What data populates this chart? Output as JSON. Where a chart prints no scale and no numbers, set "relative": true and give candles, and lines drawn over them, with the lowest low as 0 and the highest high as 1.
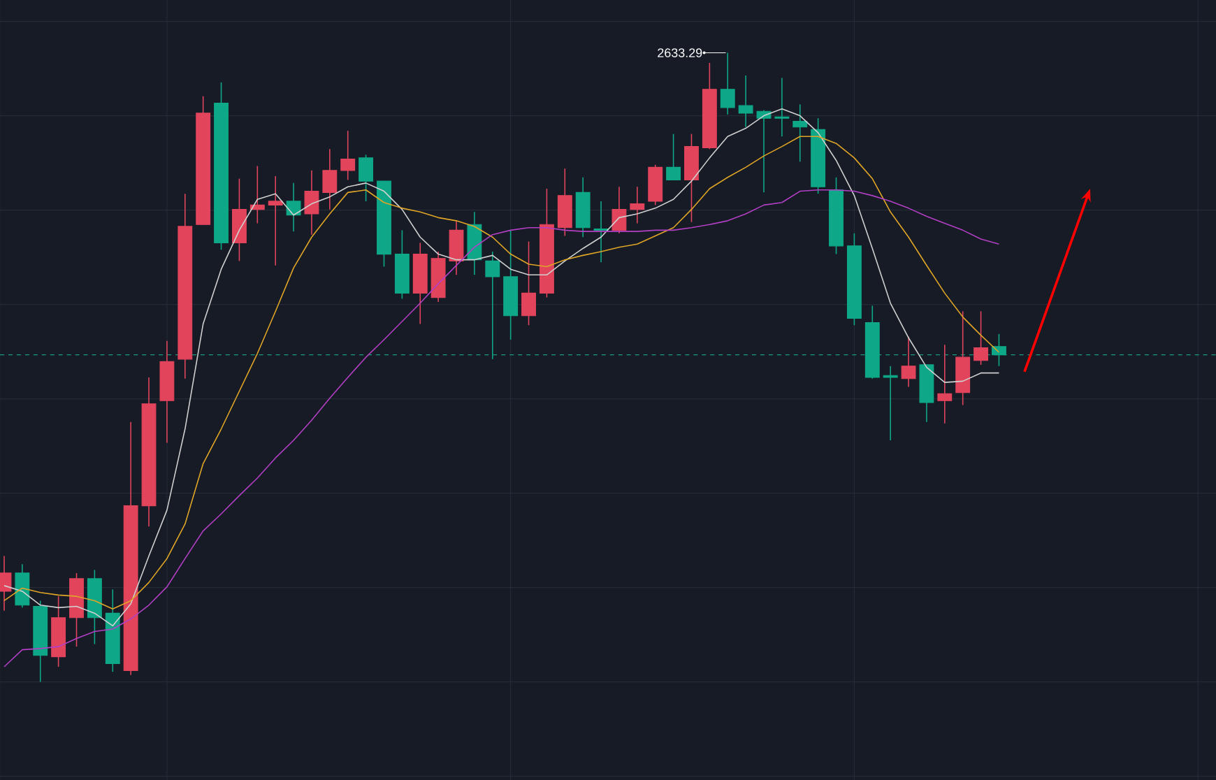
{
  "chart_data": {
    "type": "candlestick",
    "relative": true,
    "grid": true,
    "categories": [
      null,
      null,
      null,
      null,
      null,
      null,
      null,
      null,
      null,
      null,
      null,
      null,
      null,
      null,
      null,
      null,
      null,
      null,
      null,
      null,
      null,
      null,
      null,
      null,
      null,
      null,
      null,
      null,
      null,
      null,
      null,
      null,
      null,
      null,
      null,
      null,
      null,
      null,
      null,
      null,
      null,
      null,
      null,
      null,
      null,
      null,
      null,
      null,
      null,
      null,
      null,
      null,
      null,
      null,
      null,
      null
    ],
    "ohlc": [
      [
        0.144,
        0.2,
        0.113,
        0.173
      ],
      [
        0.173,
        0.187,
        0.118,
        0.122
      ],
      [
        0.12,
        0.129,
        0,
        0.042
      ],
      [
        0.04,
        0.136,
        0.024,
        0.102
      ],
      [
        0.102,
        0.173,
        0.056,
        0.164
      ],
      [
        0.164,
        0.178,
        0.06,
        0.102
      ],
      [
        0.109,
        0.147,
        0.016,
        0.029
      ],
      [
        0.018,
        0.413,
        0.011,
        0.28
      ],
      [
        0.28,
        0.484,
        0.247,
        0.442
      ],
      [
        0.447,
        0.542,
        0.38,
        0.509
      ],
      [
        0.513,
        0.776,
        0.482,
        0.724
      ],
      [
        0.727,
        0.931,
        0.727,
        0.904
      ],
      [
        0.92,
        0.953,
        0.687,
        0.698
      ],
      [
        0.698,
        0.8,
        0.669,
        0.751
      ],
      [
        0.751,
        0.82,
        0.729,
        0.758
      ],
      [
        0.758,
        0.804,
        0.662,
        0.764
      ],
      [
        0.764,
        0.793,
        0.716,
        0.742
      ],
      [
        0.744,
        0.813,
        0.711,
        0.78
      ],
      [
        0.778,
        0.847,
        0.751,
        0.813
      ],
      [
        0.813,
        0.876,
        0.798,
        0.831
      ],
      [
        0.833,
        0.838,
        0.764,
        0.796
      ],
      [
        0.796,
        0.796,
        0.66,
        0.68
      ],
      [
        0.68,
        0.718,
        0.609,
        0.618
      ],
      [
        0.618,
        0.698,
        0.569,
        0.68
      ],
      [
        0.611,
        0.684,
        0.604,
        0.673
      ],
      [
        0.669,
        0.733,
        0.647,
        0.718
      ],
      [
        0.727,
        0.747,
        0.647,
        0.671
      ],
      [
        0.669,
        0.684,
        0.513,
        0.644
      ],
      [
        0.644,
        0.718,
        0.544,
        0.582
      ],
      [
        0.582,
        0.7,
        0.567,
        0.618
      ],
      [
        0.618,
        0.784,
        0.611,
        0.727
      ],
      [
        0.722,
        0.816,
        0.709,
        0.773
      ],
      [
        0.778,
        0.802,
        0.707,
        0.722
      ],
      [
        0.72,
        0.764,
        0.667,
        0.718
      ],
      [
        0.718,
        0.787,
        0.713,
        0.751
      ],
      [
        0.751,
        0.787,
        0.729,
        0.76
      ],
      [
        0.764,
        0.822,
        0.758,
        0.818
      ],
      [
        0.818,
        0.871,
        0.798,
        0.798
      ],
      [
        0.798,
        0.871,
        0.731,
        0.851
      ],
      [
        0.849,
        0.984,
        0.847,
        0.942
      ],
      [
        0.942,
        1,
        0.902,
        0.913
      ],
      [
        0.916,
        0.964,
        0.882,
        0.904
      ],
      [
        0.907,
        0.909,
        0.778,
        0.896
      ],
      [
        0.898,
        0.96,
        0.867,
        0.896
      ],
      [
        0.891,
        0.918,
        0.827,
        0.882
      ],
      [
        0.878,
        0.896,
        0.776,
        0.787
      ],
      [
        0.782,
        0.802,
        0.68,
        0.693
      ],
      [
        0.693,
        0.713,
        0.567,
        0.578
      ],
      [
        0.571,
        0.598,
        0.482,
        0.484
      ],
      [
        0.487,
        0.502,
        0.384,
        0.484
      ],
      [
        0.482,
        0.549,
        0.469,
        0.502
      ],
      [
        0.504,
        0.504,
        0.413,
        0.444
      ],
      [
        0.447,
        0.536,
        0.411,
        0.458
      ],
      [
        0.46,
        0.589,
        0.44,
        0.516
      ],
      [
        0.511,
        0.589,
        0.504,
        0.531
      ],
      [
        0.533,
        0.553,
        0.502,
        0.52
      ]
    ],
    "colors": [
      "#e2445c",
      "#0ea888",
      "#0ea888",
      "#e2445c",
      "#e2445c",
      "#0ea888",
      "#0ea888",
      "#e2445c",
      "#e2445c",
      "#e2445c",
      "#e2445c",
      "#e2445c",
      "#0ea888",
      "#e2445c",
      "#e2445c",
      "#e2445c",
      "#0ea888",
      "#e2445c",
      "#e2445c",
      "#e2445c",
      "#0ea888",
      "#0ea888",
      "#0ea888",
      "#e2445c",
      "#e2445c",
      "#e2445c",
      "#0ea888",
      "#0ea888",
      "#0ea888",
      "#e2445c",
      "#e2445c",
      "#e2445c",
      "#0ea888",
      "#0ea888",
      "#e2445c",
      "#e2445c",
      "#e2445c",
      "#0ea888",
      "#e2445c",
      "#e2445c",
      "#0ea888",
      "#0ea888",
      "#0ea888",
      "#0ea888",
      "#0ea888",
      "#0ea888",
      "#0ea888",
      "#0ea888",
      "#0ea888",
      "#0ea888",
      "#e2445c",
      "#0ea888",
      "#e2445c",
      "#e2445c",
      "#e2445c",
      "#0ea888"
    ],
    "series": [
      {
        "type": "line",
        "color": "#d0d0d0",
        "values": [
          0.153,
          0.144,
          0.122,
          0.118,
          0.12,
          0.109,
          0.089,
          0.124,
          0.2,
          0.273,
          0.402,
          0.569,
          0.656,
          0.718,
          0.767,
          0.776,
          0.742,
          0.76,
          0.771,
          0.787,
          0.793,
          0.78,
          0.751,
          0.707,
          0.68,
          0.671,
          0.671,
          0.678,
          0.656,
          0.647,
          0.647,
          0.669,
          0.689,
          0.707,
          0.738,
          0.744,
          0.753,
          0.767,
          0.796,
          0.833,
          0.867,
          0.88,
          0.9,
          0.911,
          0.9,
          0.873,
          0.829,
          0.773,
          0.689,
          0.602,
          0.547,
          0.5,
          0.476,
          0.478,
          0.491,
          0.491
        ]
      },
      {
        "type": "line",
        "color": "#e0a526",
        "values": [
          0.129,
          0.149,
          0.142,
          0.138,
          0.136,
          0.129,
          0.116,
          0.129,
          0.158,
          0.196,
          0.251,
          0.347,
          0.402,
          0.462,
          0.522,
          0.589,
          0.658,
          0.707,
          0.744,
          0.778,
          0.782,
          0.762,
          0.753,
          0.747,
          0.738,
          0.733,
          0.724,
          0.707,
          0.68,
          0.664,
          0.66,
          0.671,
          0.678,
          0.684,
          0.691,
          0.696,
          0.709,
          0.722,
          0.751,
          0.784,
          0.802,
          0.818,
          0.836,
          0.851,
          0.867,
          0.867,
          0.856,
          0.833,
          0.8,
          0.747,
          0.707,
          0.662,
          0.618,
          0.58,
          0.551,
          0.524
        ]
      },
      {
        "type": "line",
        "color": "#b23fc4",
        "values": [
          0.024,
          0.051,
          0.053,
          0.056,
          0.069,
          0.08,
          0.084,
          0.1,
          0.122,
          0.151,
          0.196,
          0.24,
          0.267,
          0.296,
          0.324,
          0.356,
          0.384,
          0.416,
          0.451,
          0.484,
          0.516,
          0.544,
          0.573,
          0.602,
          0.633,
          0.662,
          0.691,
          0.711,
          0.718,
          0.722,
          0.722,
          0.718,
          0.716,
          0.716,
          0.716,
          0.716,
          0.718,
          0.718,
          0.722,
          0.727,
          0.733,
          0.744,
          0.758,
          0.762,
          0.78,
          0.782,
          0.782,
          0.78,
          0.773,
          0.764,
          0.753,
          0.74,
          0.729,
          0.718,
          0.704,
          0.696
        ]
      }
    ],
    "ref_lines": [
      {
        "axis": "y",
        "value": 0.52,
        "color": "#1a9a80",
        "line_style": "dashed"
      }
    ],
    "annotations": [
      "2633.29"
    ]
  }
}
